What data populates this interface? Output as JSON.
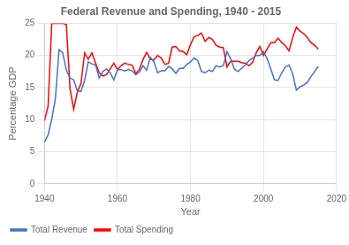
{
  "chart_data": {
    "type": "line",
    "title": "Federal Revenue and Spending, 1940 - 2015",
    "xlabel": "Year",
    "ylabel": "Percentage GDP",
    "x": [
      1940,
      1941,
      1942,
      1943,
      1944,
      1945,
      1946,
      1947,
      1948,
      1949,
      1950,
      1951,
      1952,
      1953,
      1954,
      1955,
      1956,
      1957,
      1958,
      1959,
      1960,
      1961,
      1962,
      1963,
      1964,
      1965,
      1966,
      1967,
      1968,
      1969,
      1970,
      1971,
      1972,
      1973,
      1974,
      1975,
      1976,
      1977,
      1978,
      1979,
      1980,
      1981,
      1982,
      1983,
      1984,
      1985,
      1986,
      1987,
      1988,
      1989,
      1990,
      1991,
      1992,
      1993,
      1994,
      1995,
      1996,
      1997,
      1998,
      1999,
      2000,
      2001,
      2002,
      2003,
      2004,
      2005,
      2006,
      2007,
      2008,
      2009,
      2010,
      2011,
      2012,
      2013,
      2014,
      2015
    ],
    "series": [
      {
        "name": "Total Revenue",
        "color": "#4472C4",
        "values": [
          6.5,
          7.6,
          10.1,
          13.3,
          20.9,
          20.4,
          17.7,
          16.5,
          16.2,
          14.5,
          14.4,
          16.1,
          19.0,
          18.7,
          18.5,
          16.5,
          17.5,
          17.9,
          17.3,
          16.2,
          17.8,
          17.8,
          17.6,
          17.8,
          17.6,
          17.0,
          17.4,
          18.4,
          17.7,
          19.7,
          19.0,
          17.3,
          17.6,
          17.6,
          18.3,
          17.9,
          17.2,
          18.0,
          18.0,
          18.6,
          19.0,
          19.6,
          19.2,
          17.5,
          17.3,
          17.7,
          17.5,
          18.4,
          18.2,
          18.4,
          20.6,
          19.5,
          17.9,
          17.5,
          18.0,
          18.5,
          19.2,
          19.6,
          20.0,
          20.0,
          20.6,
          19.5,
          17.9,
          16.2,
          16.1,
          17.3,
          18.2,
          18.5,
          17.1,
          14.6,
          15.1,
          15.4,
          15.8,
          16.7,
          17.5,
          18.3
        ]
      },
      {
        "name": "Total Spending",
        "color": "#FF0000",
        "values": [
          9.8,
          12.1,
          25.0,
          25.0,
          25.0,
          25.0,
          24.8,
          14.8,
          11.6,
          14.3,
          15.6,
          20.4,
          19.4,
          20.4,
          18.8,
          17.3,
          16.8,
          17.0,
          17.9,
          18.8,
          17.8,
          18.4,
          18.8,
          18.6,
          18.5,
          17.2,
          17.8,
          19.4,
          20.5,
          19.4,
          19.3,
          20.0,
          19.6,
          18.6,
          18.8,
          21.3,
          21.4,
          20.7,
          20.6,
          20.1,
          21.7,
          22.9,
          23.1,
          23.5,
          22.2,
          22.8,
          22.5,
          21.6,
          21.3,
          21.2,
          18.2,
          19.1,
          19.1,
          19.1,
          18.9,
          18.8,
          18.4,
          18.9,
          20.4,
          21.4,
          20.0,
          21.0,
          22.0,
          22.0,
          22.7,
          22.0,
          21.5,
          20.7,
          22.8,
          24.4,
          23.8,
          23.4,
          22.8,
          22.0,
          21.6,
          21.0
        ]
      }
    ],
    "xlim": [
      1940,
      2020
    ],
    "ylim": [
      0,
      25
    ],
    "xticks": [
      1940,
      1960,
      1980,
      2000,
      2020
    ],
    "yticks": [
      0,
      5,
      10,
      15,
      20,
      25
    ],
    "grid": true,
    "legend": "lower left"
  }
}
